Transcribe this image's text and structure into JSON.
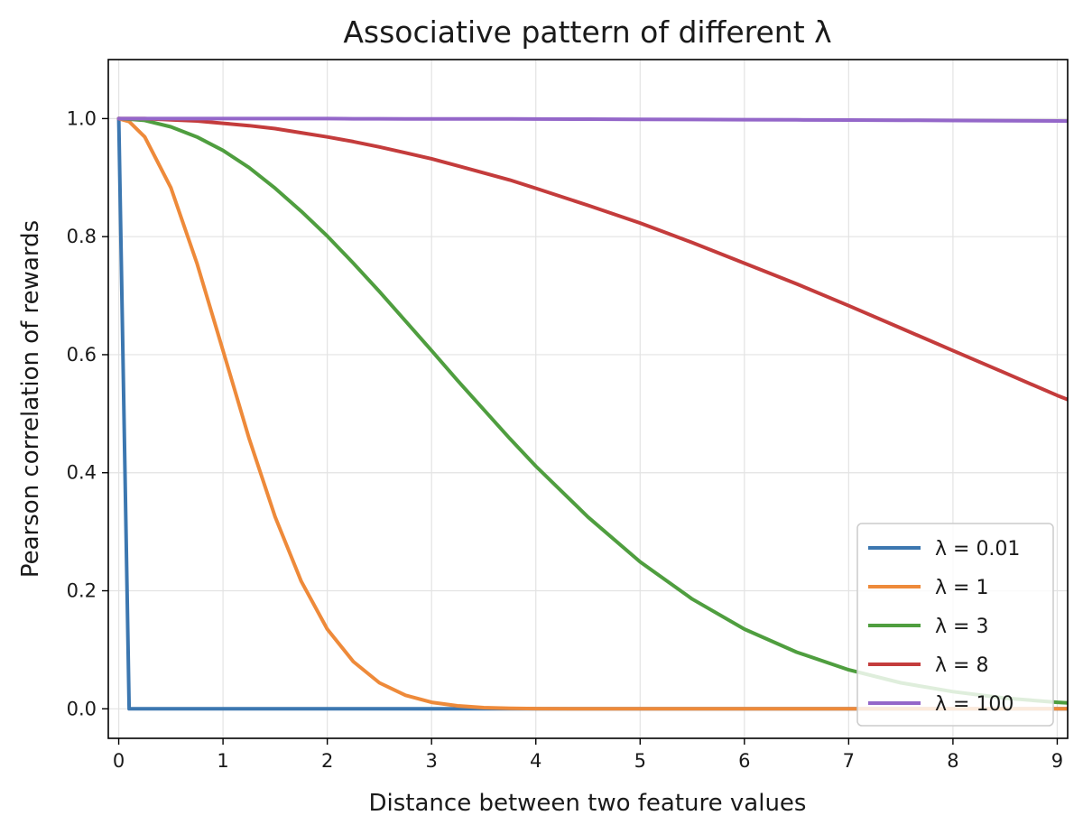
{
  "chart_data": {
    "type": "line",
    "title": "Associative pattern of different λ",
    "xlabel": "Distance between two feature values",
    "ylabel": "Pearson correlation of rewards",
    "xlim": [
      -0.1,
      9.1
    ],
    "ylim": [
      -0.05,
      1.1
    ],
    "xticks": [
      "0",
      "1",
      "2",
      "3",
      "4",
      "5",
      "6",
      "7",
      "8",
      "9"
    ],
    "yticks": [
      "0.0",
      "0.2",
      "0.4",
      "0.6",
      "0.8",
      "1.0"
    ],
    "grid": true,
    "legend_position": "lower-right",
    "x": [
      0,
      0.1,
      0.25,
      0.5,
      0.75,
      1,
      1.25,
      1.5,
      1.75,
      2,
      2.25,
      2.5,
      2.75,
      3,
      3.25,
      3.5,
      3.75,
      4,
      4.5,
      5,
      5.5,
      6,
      6.5,
      7,
      7.5,
      8,
      8.5,
      9,
      9.1
    ],
    "series": [
      {
        "name": "λ = 0.01",
        "color": "#3c77b0",
        "values": [
          1,
          0,
          0,
          0,
          0,
          0,
          0,
          0,
          0,
          0,
          0,
          0,
          0,
          0,
          0,
          0,
          0,
          0,
          0,
          0,
          0,
          0,
          0,
          0,
          0,
          0,
          0,
          0,
          0
        ]
      },
      {
        "name": "λ = 1",
        "color": "#ee8a3a",
        "values": [
          1,
          0.995,
          0.969,
          0.883,
          0.755,
          0.607,
          0.458,
          0.325,
          0.216,
          0.135,
          0.08,
          0.044,
          0.023,
          0.011,
          0.005,
          0.002,
          0.001,
          0.0003,
          0,
          0,
          0,
          0,
          0,
          0,
          0,
          0,
          0,
          0,
          0
        ]
      },
      {
        "name": "λ = 3",
        "color": "#4f9e3f",
        "values": [
          1,
          0.999,
          0.997,
          0.986,
          0.969,
          0.946,
          0.917,
          0.882,
          0.843,
          0.801,
          0.755,
          0.707,
          0.657,
          0.607,
          0.556,
          0.507,
          0.458,
          0.411,
          0.325,
          0.249,
          0.186,
          0.135,
          0.096,
          0.066,
          0.044,
          0.029,
          0.018,
          0.011,
          0.01
        ]
      },
      {
        "name": "λ = 8",
        "color": "#c43c3c",
        "values": [
          1,
          1,
          1,
          0.998,
          0.996,
          0.992,
          0.988,
          0.983,
          0.976,
          0.969,
          0.961,
          0.952,
          0.942,
          0.932,
          0.92,
          0.908,
          0.896,
          0.882,
          0.853,
          0.823,
          0.79,
          0.755,
          0.72,
          0.683,
          0.645,
          0.607,
          0.569,
          0.531,
          0.524
        ]
      },
      {
        "name": "λ = 100",
        "color": "#9467c9",
        "values": [
          1,
          1,
          1,
          1,
          1,
          1,
          1,
          1,
          1,
          1,
          0.9997,
          0.9997,
          0.9996,
          0.9996,
          0.9995,
          0.9994,
          0.9993,
          0.9992,
          0.999,
          0.9988,
          0.9985,
          0.9982,
          0.9979,
          0.9976,
          0.9972,
          0.9968,
          0.9964,
          0.996,
          0.9959
        ]
      }
    ]
  }
}
